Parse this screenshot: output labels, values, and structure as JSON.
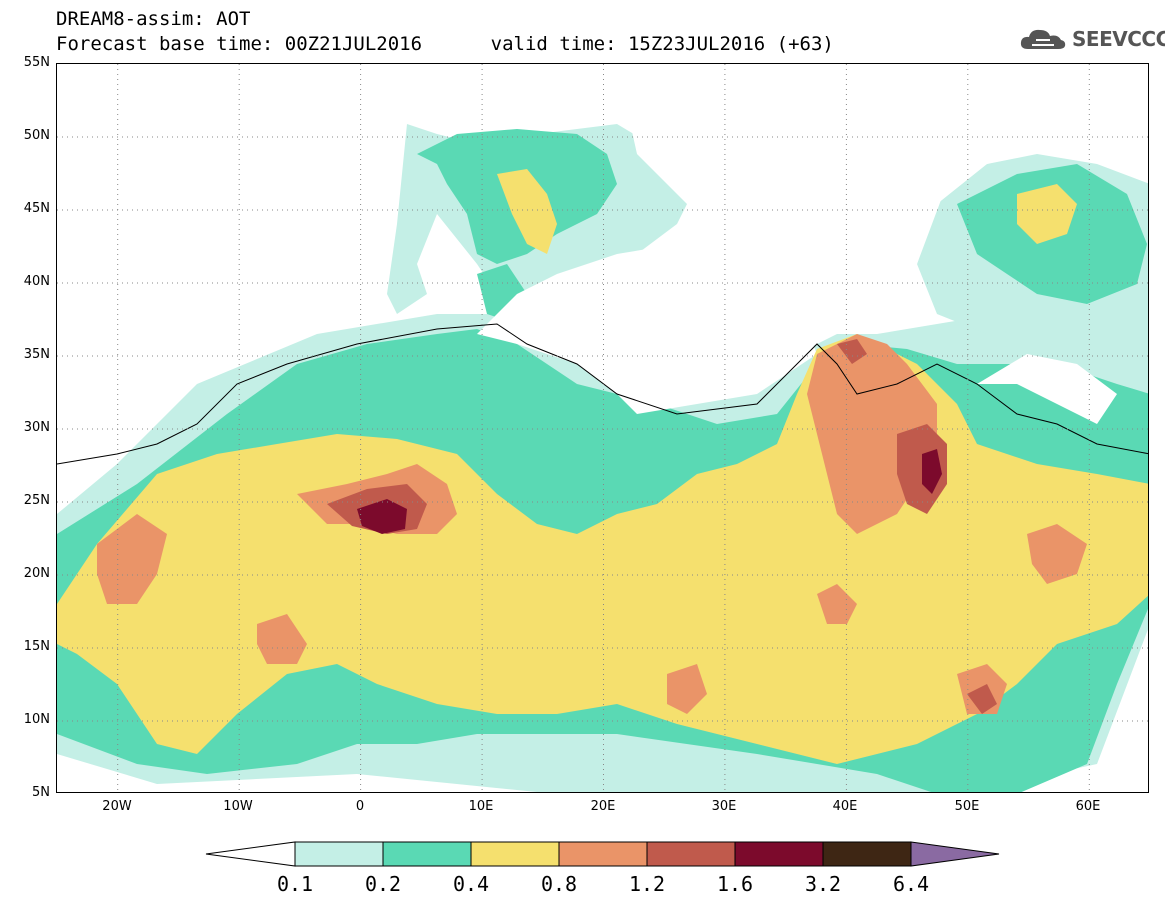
{
  "header": {
    "title_line1": "DREAM8-assim: AOT",
    "title_line2": "Forecast base time: 00Z21JUL2016      valid time: 15Z23JUL2016 (+63)",
    "logo_text": "SEEVCCC"
  },
  "map": {
    "variable": "AOT",
    "lon_range": [
      -25,
      65
    ],
    "lat_range": [
      5,
      55
    ],
    "lat_labels": [
      "55N",
      "50N",
      "45N",
      "40N",
      "35N",
      "30N",
      "25N",
      "20N",
      "15N",
      "10N",
      "5N"
    ],
    "lon_labels": [
      "20W",
      "10W",
      "0",
      "10E",
      "20E",
      "30E",
      "40E",
      "50E",
      "60E"
    ],
    "gridlines": "dotted"
  },
  "colorbar": {
    "labels": [
      "0.1",
      "0.2",
      "0.4",
      "0.8",
      "1.2",
      "1.6",
      "3.2",
      "6.4"
    ],
    "colors": [
      "#ffffff",
      "#c4efe6",
      "#5ad9b4",
      "#f5e06e",
      "#ea9468",
      "#c05a4c",
      "#7c0a2c",
      "#3e2614",
      "#8a6aa2"
    ]
  }
}
